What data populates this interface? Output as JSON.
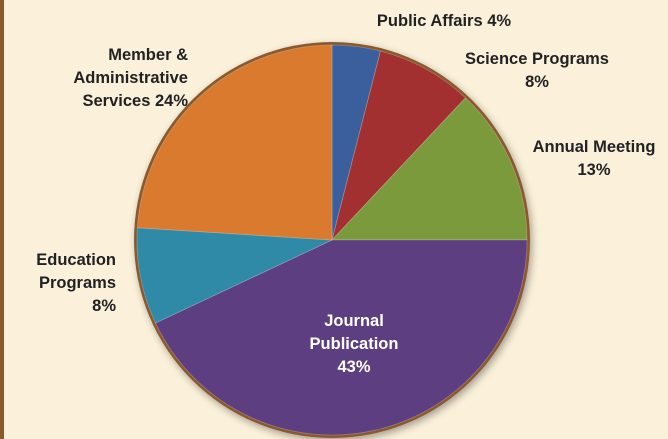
{
  "chart_data": {
    "type": "pie",
    "title": "",
    "slices": [
      {
        "lines": [
          "Public Affairs 4%"
        ],
        "value": 4,
        "color": "#3a5f9c"
      },
      {
        "lines": [
          "Science Programs",
          "8%"
        ],
        "value": 8,
        "color": "#a23031"
      },
      {
        "lines": [
          "Annual Meeting",
          "13%"
        ],
        "value": 13,
        "color": "#7a9a3b"
      },
      {
        "lines": [
          "Journal",
          "Publication",
          "43%"
        ],
        "value": 43,
        "color": "#5d3e80"
      },
      {
        "lines": [
          "Education",
          "Programs",
          "8%"
        ],
        "value": 8,
        "color": "#2e8aa6"
      },
      {
        "lines": [
          "Member &",
          "Administrative",
          "Services 24%"
        ],
        "value": 24,
        "color": "#da7a2e"
      }
    ],
    "rim_color": "#8a5a2e"
  }
}
